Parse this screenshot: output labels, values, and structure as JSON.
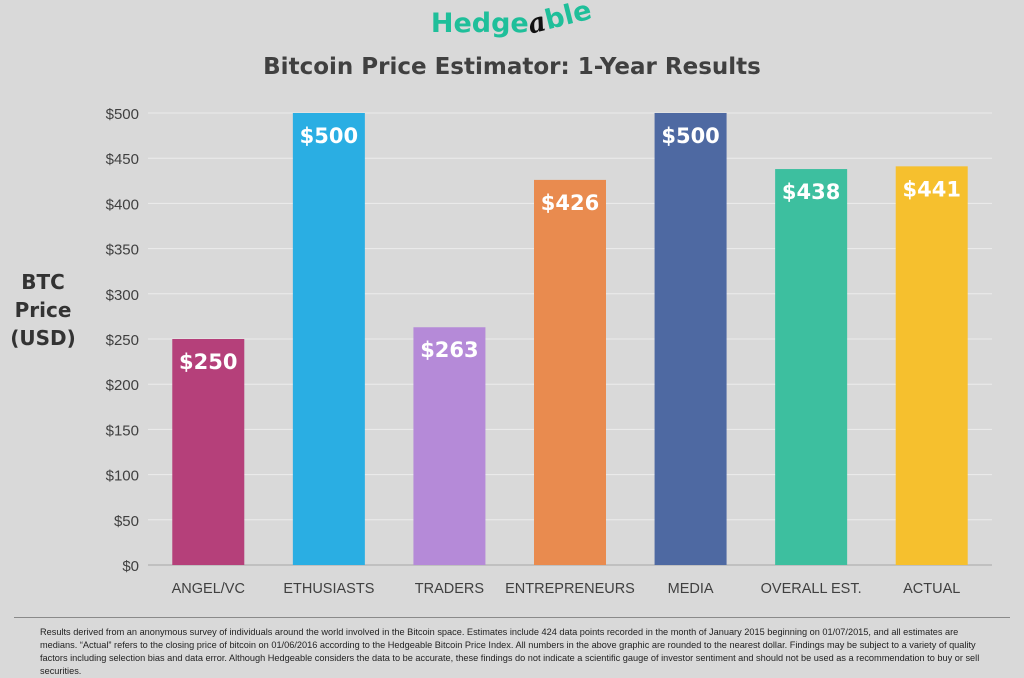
{
  "logo": {
    "text_start": "Hedge",
    "text_alpha": "a",
    "text_end": "ble",
    "brand_color": "#1fbf9a"
  },
  "chart_data": {
    "type": "bar",
    "title": "Bitcoin Price Estimator: 1-Year Results",
    "ylabel": "BTC Price (USD)",
    "xlabel": "",
    "categories": [
      "ANGEL/VC",
      "ETHUSIASTS",
      "TRADERS",
      "ENTREPRENEURS",
      "MEDIA",
      "OVERALL EST.",
      "ACTUAL"
    ],
    "values": [
      250,
      500,
      263,
      426,
      500,
      438,
      441
    ],
    "data_labels": [
      "$250",
      "$500",
      "$263",
      "$426",
      "$500",
      "$438",
      "$441"
    ],
    "colors": [
      "#b5407a",
      "#2aaee3",
      "#b58ad8",
      "#e98b4f",
      "#4e69a2",
      "#3dbf9f",
      "#f6c02e"
    ],
    "ylim": [
      0,
      500
    ],
    "yticks": [
      0,
      50,
      100,
      150,
      200,
      250,
      300,
      350,
      400,
      450,
      500
    ],
    "ytick_labels": [
      "$0",
      "$50",
      "$100",
      "$150",
      "$200",
      "$250",
      "$300",
      "$350",
      "$400",
      "$450",
      "$500"
    ],
    "grid": true,
    "legend": "none"
  },
  "footnote": "Results derived from an anonymous survey of individuals around the world involved in the Bitcoin space. Estimates include 424 data points recorded in the month of January 2015 beginning on 01/07/2015, and all estimates are medians. “Actual” refers to the closing price of bitcoin on 01/06/2016 according to the Hedgeable Bitcoin Price Index. All numbers in the above graphic are rounded to the nearest dollar. Findings may be subject to a variety of quality factors including selection bias and data error. Although Hedgeable considers the data to be accurate, these findings do not indicate a scientific gauge of investor sentiment and should not be used as a recommendation to buy or sell securities."
}
